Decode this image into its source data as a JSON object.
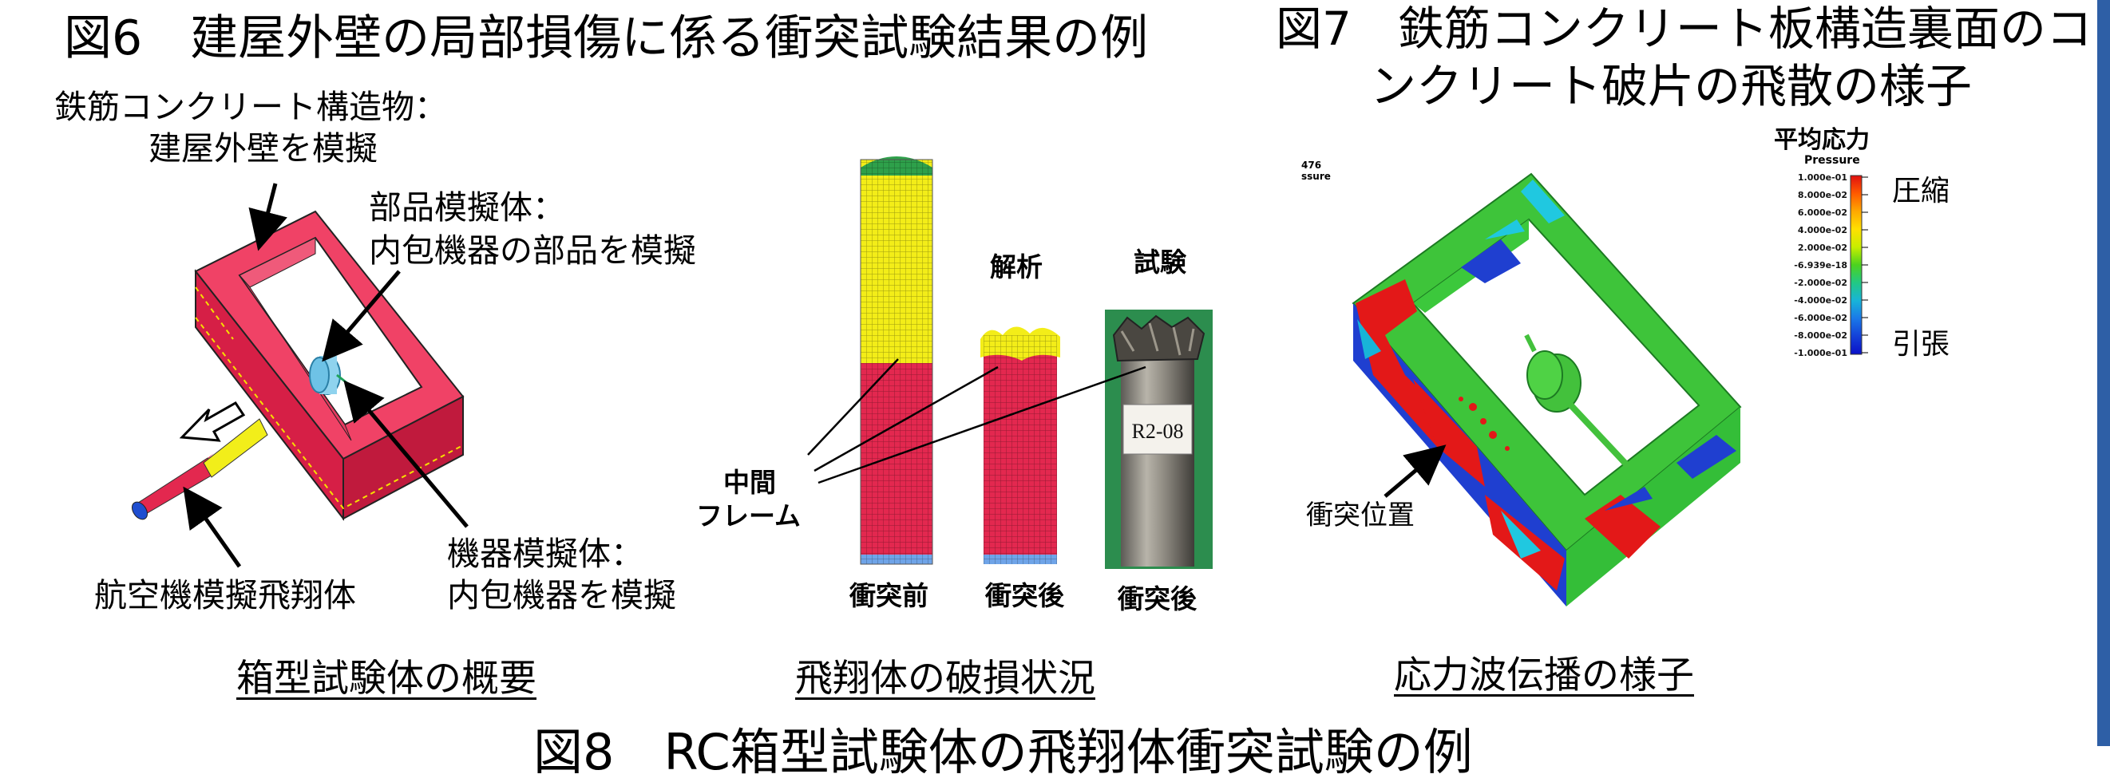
{
  "fig6": {
    "title": "図6　建屋外壁の局部損傷に係る衝突試験結果の例",
    "structure_label_1": "鉄筋コンクリート構造物：",
    "structure_label_2": "建屋外壁を模擬",
    "part_label_1": "部品模擬体：",
    "part_label_2": "内包機器の部品を模擬",
    "equip_label_1": "機器模擬体：",
    "equip_label_2": "内包機器を模擬",
    "aircraft_label": "航空機模擬飛翔体",
    "analysis_label": "解析",
    "test_label": "試験",
    "frame_label_1": "中間",
    "frame_label_2": "フレーム",
    "before_label": "衝突前",
    "after_label_1": "衝突後",
    "after_label_2": "衝突後",
    "specimen_tag": "R2-08",
    "caption_left": "箱型試験体の概要",
    "caption_mid": "飛翔体の破損状況"
  },
  "fig7": {
    "title_1": "図7　鉄筋コンクリート板構造裏面のコ",
    "title_2": "ンクリート破片の飛散の様子",
    "legend_title": "平均応力",
    "legend_header": "Pressure",
    "corner_1": "476",
    "corner_2": "ssure",
    "compress_label": "圧縮",
    "tension_label": "引張",
    "impact_label": "衝突位置",
    "caption": "応力波伝播の様子",
    "legend_ticks": [
      "1.000e-01",
      "8.000e-02",
      "6.000e-02",
      "4.000e-02",
      "2.000e-02",
      "-6.939e-18",
      "-2.000e-02",
      "-4.000e-02",
      "-6.000e-02",
      "-8.000e-02",
      "-1.000e-01"
    ],
    "legend_colors": [
      "#e01010",
      "#ff5a00",
      "#ffa800",
      "#ffe000",
      "#c8ee00",
      "#4cd21e",
      "#22c884",
      "#18b4d8",
      "#1a78e8",
      "#1440d8",
      "#0a10c8"
    ]
  },
  "bottom_caption": "図8　RC箱型試験体の飛翔体衝突試験の例",
  "colors": {
    "crimson": "#e3284f",
    "yellow": "#f2ee1a",
    "cyan": "#8fd3ee",
    "green": "#43c13c",
    "blue": "#1f3fd0",
    "red": "#e31818"
  }
}
